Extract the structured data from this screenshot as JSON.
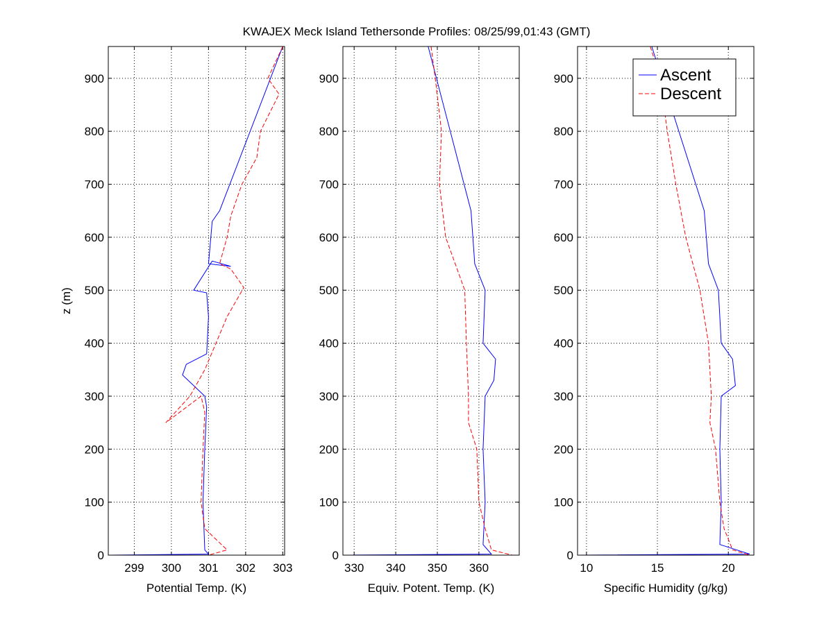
{
  "title": "KWAJEX Meck Island Tethersonde Profiles: 08/25/99,01:43 (GMT)",
  "colors": {
    "ascent": "#0000ff",
    "descent": "#ff0000"
  },
  "chart_data": [
    {
      "type": "line",
      "xlabel": "Potential Temp. (K)",
      "ylabel": "z (m)",
      "xlim": [
        298.3,
        303.05
      ],
      "ylim": [
        0,
        960
      ],
      "xticks": [
        299,
        300,
        301,
        302,
        303
      ],
      "yticks": [
        0,
        100,
        200,
        300,
        400,
        500,
        600,
        700,
        800,
        900
      ],
      "grid": true,
      "series": [
        {
          "name": "Ascent",
          "style": "solid",
          "color": "#0000ff",
          "x": [
            298.35,
            301.0,
            300.9,
            300.85,
            300.9,
            300.95,
            300.9,
            300.3,
            300.4,
            300.95,
            301.0,
            300.95,
            300.6,
            301.1,
            301.6,
            301.0,
            301.1,
            301.3,
            303.0
          ],
          "y": [
            0,
            2,
            10,
            100,
            200,
            280,
            300,
            340,
            360,
            380,
            450,
            495,
            500,
            555,
            545,
            550,
            630,
            650,
            960
          ]
        },
        {
          "name": "Descent",
          "style": "dashed",
          "color": "#ff0000",
          "x": [
            303.0,
            302.6,
            302.9,
            302.4,
            302.3,
            301.9,
            301.6,
            301.5,
            301.3,
            301.6,
            301.95,
            301.5,
            301.2,
            300.9,
            300.5,
            299.85,
            300.8,
            300.9,
            300.85,
            300.8,
            300.9,
            301.5,
            301.0
          ],
          "y": [
            960,
            900,
            870,
            800,
            750,
            700,
            640,
            600,
            550,
            540,
            505,
            450,
            400,
            350,
            300,
            250,
            300,
            270,
            200,
            100,
            50,
            10,
            0
          ]
        }
      ]
    },
    {
      "type": "line",
      "xlabel": "Equiv. Potent. Temp. (K)",
      "xlim": [
        327.3,
        369.7
      ],
      "ylim": [
        0,
        960
      ],
      "xticks": [
        330,
        340,
        350,
        360
      ],
      "yticks": [
        0,
        100,
        200,
        300,
        400,
        500,
        600,
        700,
        800,
        900
      ],
      "grid": true,
      "series": [
        {
          "name": "Ascent",
          "style": "solid",
          "color": "#0000ff",
          "x": [
            327.5,
            363.0,
            361.0,
            361.5,
            361.0,
            361.5,
            363.6,
            364.0,
            361.0,
            361.5,
            359.0,
            358.1,
            347.8
          ],
          "y": [
            0,
            2,
            20,
            100,
            200,
            300,
            330,
            370,
            400,
            500,
            550,
            650,
            960
          ]
        },
        {
          "name": "Descent",
          "style": "dashed",
          "color": "#ff0000",
          "x": [
            348.5,
            349.5,
            351.0,
            350.5,
            352.0,
            356.6,
            357.0,
            357.5,
            357.5,
            359.5,
            360.0,
            361.5,
            363.0,
            368.0
          ],
          "y": [
            960,
            900,
            800,
            700,
            600,
            500,
            400,
            300,
            250,
            200,
            100,
            50,
            10,
            0
          ]
        }
      ]
    },
    {
      "type": "line",
      "xlabel": "Specific Humidity (g/kg)",
      "xlim": [
        9.37,
        21.8
      ],
      "ylim": [
        0,
        960
      ],
      "xticks": [
        10,
        15,
        20
      ],
      "yticks": [
        0,
        100,
        200,
        300,
        400,
        500,
        600,
        700,
        800,
        900
      ],
      "grid": true,
      "legend": {
        "placement": "top-right",
        "entries": [
          "Ascent",
          "Descent"
        ]
      },
      "series": [
        {
          "name": "Ascent",
          "style": "solid",
          "color": "#0000ff",
          "x": [
            9.5,
            21.5,
            19.4,
            19.5,
            19.4,
            19.5,
            20.5,
            20.3,
            19.5,
            19.3,
            18.6,
            18.3,
            14.6
          ],
          "y": [
            0,
            2,
            20,
            100,
            200,
            300,
            320,
            370,
            400,
            500,
            550,
            650,
            960
          ]
        },
        {
          "name": "Descent",
          "style": "dashed",
          "color": "#ff0000",
          "x": [
            14.5,
            15.2,
            15.7,
            16.3,
            17.0,
            18.0,
            18.6,
            18.8,
            18.7,
            19.1,
            19.4,
            19.7,
            20.3,
            21.5
          ],
          "y": [
            960,
            900,
            800,
            700,
            600,
            500,
            400,
            300,
            250,
            200,
            100,
            50,
            10,
            0
          ]
        }
      ]
    }
  ]
}
